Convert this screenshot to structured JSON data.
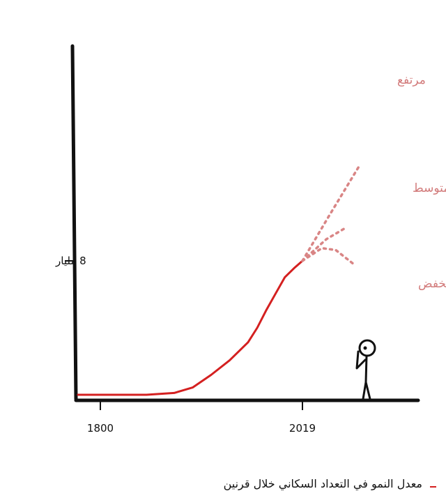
{
  "chart_data": {
    "type": "line",
    "caption": "معدل النمو في التعداد السكاني خلال قرنين",
    "x_ticks": [
      "1800",
      "2019"
    ],
    "y_ticks": [
      "8 مليار"
    ],
    "xlim": [
      1780,
      2140
    ],
    "ylim": [
      0,
      12
    ],
    "series": [
      {
        "kind": "history",
        "x": [
          1800,
          1850,
          1880,
          1900,
          1920,
          1940,
          1960,
          1970,
          1980,
          1990,
          2000,
          2010,
          2019
        ],
        "y": [
          0.6,
          0.6,
          0.7,
          1.0,
          1.7,
          2.5,
          3.5,
          4.3,
          5.3,
          6.2,
          7.1,
          7.6,
          8.0
        ]
      },
      {
        "name": "مرتفع",
        "kind": "projection",
        "x": [
          2019,
          2048,
          2080
        ],
        "y": [
          8.0,
          10.5,
          13.2
        ]
      },
      {
        "name": "متوسط",
        "kind": "projection",
        "x": [
          2019,
          2045,
          2065
        ],
        "y": [
          8.0,
          9.2,
          9.8
        ]
      },
      {
        "name": "منخفض",
        "kind": "projection",
        "x": [
          2019,
          2040,
          2055,
          2075
        ],
        "y": [
          8.0,
          8.7,
          8.6,
          7.8
        ]
      }
    ],
    "colors": {
      "axis": "#111111",
      "history": "#d42020",
      "projection": "#d98585",
      "scenario_label": "#d27a7a"
    },
    "grid": false
  }
}
